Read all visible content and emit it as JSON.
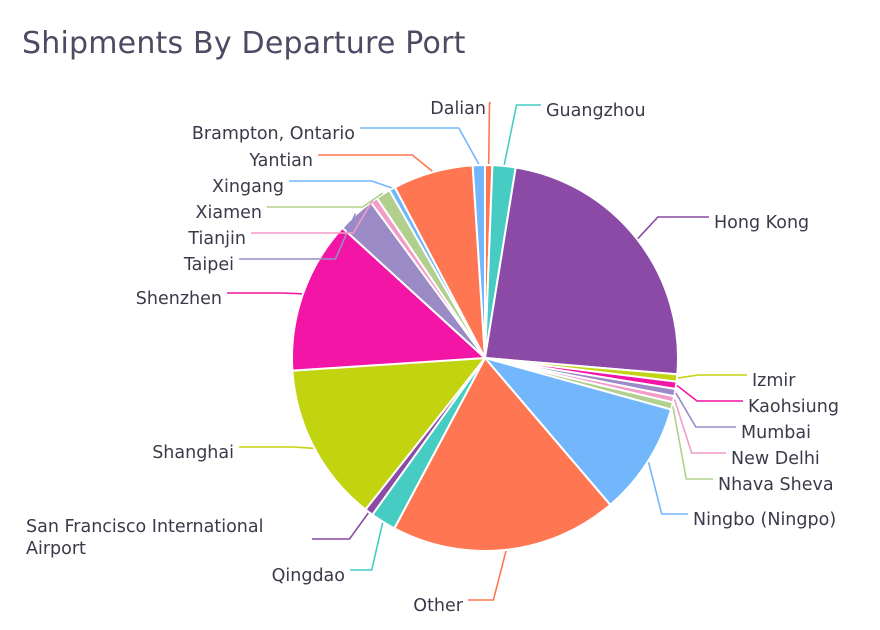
{
  "chart_data": {
    "type": "pie",
    "title": "Shipments By Departure Port",
    "slices": [
      {
        "label": "Dalian",
        "value": 0.6,
        "color": "#ff7752"
      },
      {
        "label": "Guangzhou",
        "value": 1.9,
        "color": "#46ccc3"
      },
      {
        "label": "Hong Kong",
        "value": 23.4,
        "color": "#8a4aa5"
      },
      {
        "label": "Izmir",
        "value": 0.6,
        "color": "#c2d40f"
      },
      {
        "label": "Kaohsiung",
        "value": 0.6,
        "color": "#f215a6"
      },
      {
        "label": "Mumbai",
        "value": 0.6,
        "color": "#9a8ac6"
      },
      {
        "label": "New Delhi",
        "value": 0.5,
        "color": "#f29cc8"
      },
      {
        "label": "Nhava Sheva",
        "value": 0.6,
        "color": "#b1d08e"
      },
      {
        "label": "Ningbo (Ningpo)",
        "value": 9.3,
        "color": "#72b7fc"
      },
      {
        "label": "Other",
        "value": 18.7,
        "color": "#ff7752"
      },
      {
        "label": "Qingdao",
        "value": 2.1,
        "color": "#46ccc3"
      },
      {
        "label": "San Francisco International Airport",
        "value": 0.7,
        "color": "#8a4aa5"
      },
      {
        "label": "Shanghai",
        "value": 13.1,
        "color": "#c2d40f"
      },
      {
        "label": "Shenzhen",
        "value": 12.6,
        "color": "#f215a6"
      },
      {
        "label": "Taipei",
        "value": 3.1,
        "color": "#9a8ac6"
      },
      {
        "label": "Tianjin",
        "value": 0.6,
        "color": "#f29cc8"
      },
      {
        "label": "Xiamen",
        "value": 1.2,
        "color": "#b1d08e"
      },
      {
        "label": "Xingang",
        "value": 0.5,
        "color": "#72b7fc"
      },
      {
        "label": "Yantian",
        "value": 6.6,
        "color": "#ff7752"
      },
      {
        "label": "Brampton, Ontario",
        "value": 1.0,
        "color": "#72b7fc"
      }
    ],
    "start_angle_deg": 0,
    "direction": "clockwise",
    "legend": "none"
  }
}
